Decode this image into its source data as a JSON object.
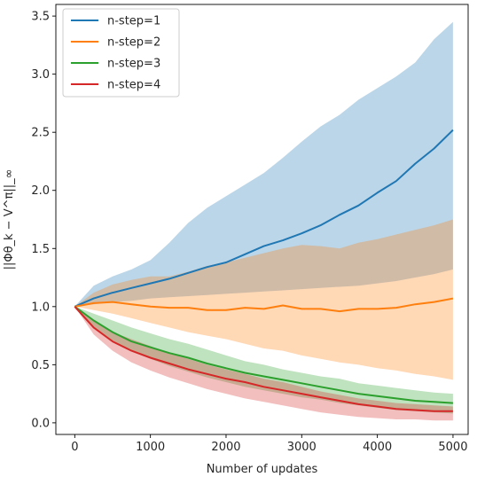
{
  "chart_data": {
    "type": "line",
    "xlabel": "Number of updates",
    "ylabel": "||Φθ_k − V^π||_∞",
    "xlim": [
      -250,
      5200
    ],
    "ylim": [
      -0.1,
      3.6
    ],
    "xticks": [
      0,
      1000,
      2000,
      3000,
      4000,
      5000
    ],
    "xtick_labels": [
      "0",
      "1000",
      "2000",
      "3000",
      "4000",
      "5000"
    ],
    "yticks": [
      0.0,
      0.5,
      1.0,
      1.5,
      2.0,
      2.5,
      3.0,
      3.5
    ],
    "ytick_labels": [
      "0.0",
      "0.5",
      "1.0",
      "1.5",
      "2.0",
      "2.5",
      "3.0",
      "3.5"
    ],
    "grid": false,
    "legend_position": "top-left",
    "x": [
      0,
      250,
      500,
      750,
      1000,
      1250,
      1500,
      1750,
      2000,
      2250,
      2500,
      2750,
      3000,
      3250,
      3500,
      3750,
      4000,
      4250,
      4500,
      4750,
      5000
    ],
    "series": [
      {
        "name": "n-step=1",
        "color": "#1f77b4",
        "values": [
          1.0,
          1.07,
          1.12,
          1.16,
          1.2,
          1.24,
          1.29,
          1.34,
          1.38,
          1.45,
          1.52,
          1.57,
          1.63,
          1.7,
          1.79,
          1.87,
          1.98,
          2.08,
          2.23,
          2.36,
          2.52
        ],
        "upper": [
          1.0,
          1.18,
          1.26,
          1.32,
          1.4,
          1.55,
          1.72,
          1.85,
          1.95,
          2.05,
          2.15,
          2.28,
          2.42,
          2.55,
          2.65,
          2.78,
          2.88,
          2.98,
          3.1,
          3.3,
          3.45
        ],
        "lower": [
          1.0,
          1.02,
          1.04,
          1.05,
          1.07,
          1.08,
          1.09,
          1.1,
          1.11,
          1.12,
          1.13,
          1.14,
          1.15,
          1.16,
          1.17,
          1.18,
          1.2,
          1.22,
          1.25,
          1.28,
          1.32
        ]
      },
      {
        "name": "n-step=2",
        "color": "#ff7f0e",
        "values": [
          1.0,
          1.03,
          1.04,
          1.02,
          1.0,
          0.99,
          0.99,
          0.97,
          0.97,
          0.99,
          0.98,
          1.01,
          0.98,
          0.98,
          0.96,
          0.98,
          0.98,
          0.99,
          1.02,
          1.04,
          1.07
        ],
        "upper": [
          1.0,
          1.12,
          1.19,
          1.23,
          1.26,
          1.26,
          1.3,
          1.35,
          1.38,
          1.42,
          1.46,
          1.5,
          1.53,
          1.52,
          1.5,
          1.55,
          1.58,
          1.62,
          1.66,
          1.7,
          1.75
        ],
        "lower": [
          1.0,
          0.97,
          0.94,
          0.9,
          0.86,
          0.82,
          0.78,
          0.75,
          0.72,
          0.68,
          0.64,
          0.62,
          0.58,
          0.55,
          0.52,
          0.5,
          0.47,
          0.45,
          0.42,
          0.4,
          0.37
        ]
      },
      {
        "name": "n-step=3",
        "color": "#2ca02c",
        "values": [
          1.0,
          0.88,
          0.78,
          0.7,
          0.65,
          0.6,
          0.56,
          0.51,
          0.47,
          0.43,
          0.4,
          0.37,
          0.34,
          0.31,
          0.28,
          0.25,
          0.23,
          0.21,
          0.19,
          0.18,
          0.17
        ],
        "upper": [
          1.0,
          0.94,
          0.88,
          0.82,
          0.77,
          0.72,
          0.68,
          0.63,
          0.58,
          0.53,
          0.5,
          0.46,
          0.43,
          0.4,
          0.38,
          0.34,
          0.32,
          0.3,
          0.28,
          0.26,
          0.25
        ],
        "lower": [
          1.0,
          0.83,
          0.71,
          0.62,
          0.55,
          0.49,
          0.44,
          0.39,
          0.35,
          0.31,
          0.28,
          0.25,
          0.22,
          0.2,
          0.17,
          0.15,
          0.13,
          0.11,
          0.1,
          0.09,
          0.08
        ]
      },
      {
        "name": "n-step=4",
        "color": "#d62728",
        "values": [
          1.0,
          0.82,
          0.7,
          0.62,
          0.56,
          0.51,
          0.46,
          0.42,
          0.38,
          0.35,
          0.31,
          0.28,
          0.25,
          0.22,
          0.19,
          0.16,
          0.14,
          0.12,
          0.11,
          0.1,
          0.1
        ],
        "upper": [
          1.0,
          0.88,
          0.78,
          0.72,
          0.66,
          0.6,
          0.55,
          0.5,
          0.46,
          0.42,
          0.38,
          0.35,
          0.31,
          0.27,
          0.24,
          0.21,
          0.19,
          0.17,
          0.16,
          0.15,
          0.14
        ],
        "lower": [
          1.0,
          0.76,
          0.62,
          0.52,
          0.45,
          0.39,
          0.34,
          0.29,
          0.25,
          0.21,
          0.18,
          0.15,
          0.12,
          0.09,
          0.07,
          0.05,
          0.04,
          0.03,
          0.03,
          0.02,
          0.02
        ]
      }
    ]
  }
}
